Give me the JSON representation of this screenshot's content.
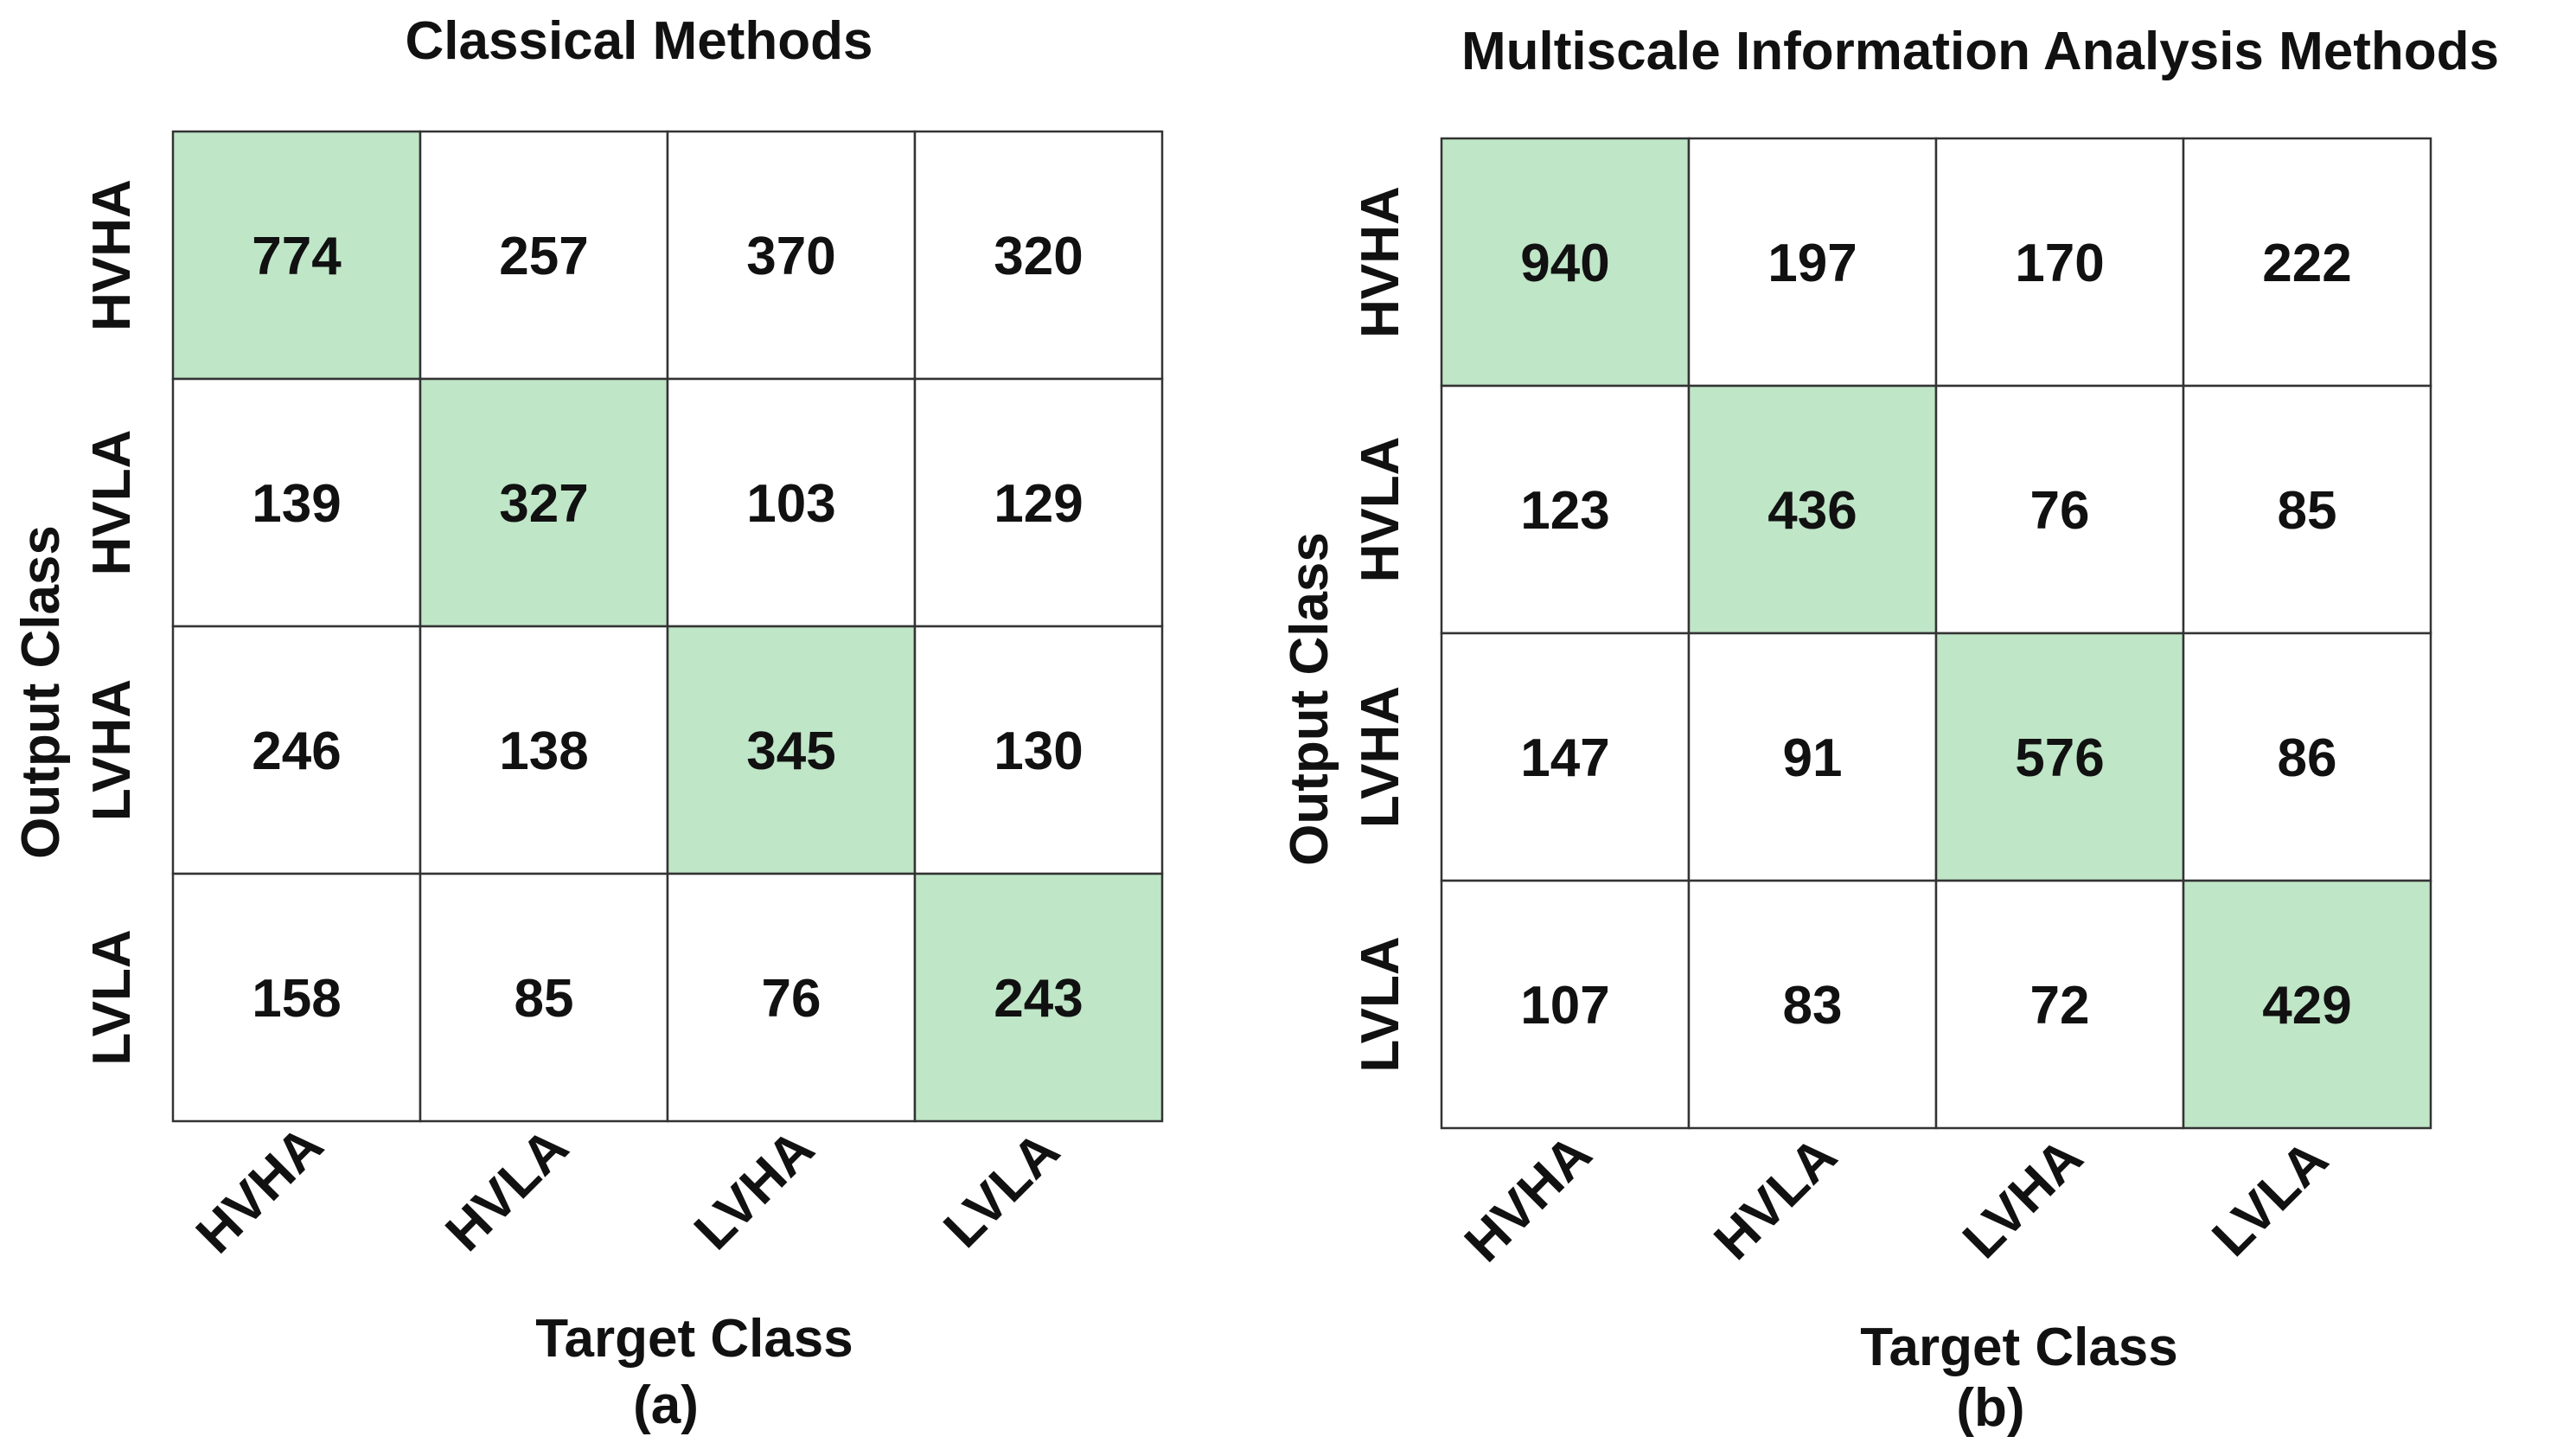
{
  "chart_data": [
    {
      "type": "heatmap",
      "title": "Classical Methods",
      "xlabel": "Target Class",
      "ylabel": "Output Class",
      "caption": "(a)",
      "rows": [
        "HVHA",
        "HVLA",
        "LVHA",
        "LVLA"
      ],
      "columns": [
        "HVHA",
        "HVLA",
        "LVHA",
        "LVLA"
      ],
      "values": [
        [
          774,
          257,
          370,
          320
        ],
        [
          139,
          327,
          103,
          129
        ],
        [
          246,
          138,
          345,
          130
        ],
        [
          158,
          85,
          76,
          243
        ]
      ],
      "highlight": "diagonal",
      "grid": true
    },
    {
      "type": "heatmap",
      "title": "Multiscale Information Analysis Methods",
      "xlabel": "Target Class",
      "ylabel": "Output Class",
      "caption": "(b)",
      "rows": [
        "HVHA",
        "HVLA",
        "LVHA",
        "LVLA"
      ],
      "columns": [
        "HVHA",
        "HVLA",
        "LVHA",
        "LVLA"
      ],
      "values": [
        [
          940,
          197,
          170,
          222
        ],
        [
          123,
          436,
          76,
          85
        ],
        [
          147,
          91,
          576,
          86
        ],
        [
          107,
          83,
          72,
          429
        ]
      ],
      "highlight": "diagonal",
      "grid": true
    }
  ],
  "colors": {
    "diagonal": "#bfe6c7",
    "off_diagonal": "#ffffff",
    "grid": "#333333",
    "text": "#111111"
  }
}
